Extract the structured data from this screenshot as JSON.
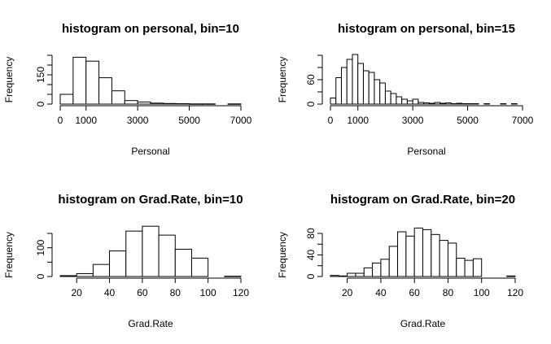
{
  "chart_data": [
    {
      "type": "bar",
      "title": "histogram on personal, bin=10",
      "xlabel": "Personal",
      "ylabel": "Frequency",
      "bins": [
        {
          "x0": 0,
          "x1": 500,
          "count": 50
        },
        {
          "x0": 500,
          "x1": 1000,
          "count": 240
        },
        {
          "x0": 1000,
          "x1": 1500,
          "count": 220
        },
        {
          "x0": 1500,
          "x1": 2000,
          "count": 135
        },
        {
          "x0": 2000,
          "x1": 2500,
          "count": 68
        },
        {
          "x0": 2500,
          "x1": 3000,
          "count": 18
        },
        {
          "x0": 3000,
          "x1": 3500,
          "count": 11
        },
        {
          "x0": 3500,
          "x1": 4000,
          "count": 5
        },
        {
          "x0": 4000,
          "x1": 4500,
          "count": 3
        },
        {
          "x0": 4500,
          "x1": 5000,
          "count": 2
        },
        {
          "x0": 5000,
          "x1": 5500,
          "count": 1
        },
        {
          "x0": 5500,
          "x1": 6000,
          "count": 1
        },
        {
          "x0": 6000,
          "x1": 6500,
          "count": 0
        },
        {
          "x0": 6500,
          "x1": 7000,
          "count": 1
        }
      ],
      "xlim": [
        0,
        7000
      ],
      "xticks": [
        0,
        1000,
        3000,
        5000,
        7000
      ],
      "xtick_labels": [
        "0",
        "1000",
        "3000",
        "5000",
        "7000"
      ],
      "ylim": [
        0,
        250
      ],
      "yticks": [
        0,
        50,
        100,
        150,
        200,
        250
      ],
      "ytick_labels": [
        "0",
        "",
        "",
        "150",
        "",
        ""
      ],
      "grid": false
    },
    {
      "type": "bar",
      "title": "histogram on personal, bin=15",
      "xlabel": "Personal",
      "ylabel": "Frequency",
      "bins": [
        {
          "x0": 0,
          "x1": 200,
          "count": 15
        },
        {
          "x0": 200,
          "x1": 400,
          "count": 65
        },
        {
          "x0": 400,
          "x1": 600,
          "count": 90
        },
        {
          "x0": 600,
          "x1": 800,
          "count": 110
        },
        {
          "x0": 800,
          "x1": 1000,
          "count": 122
        },
        {
          "x0": 1000,
          "x1": 1200,
          "count": 100
        },
        {
          "x0": 1200,
          "x1": 1400,
          "count": 82
        },
        {
          "x0": 1400,
          "x1": 1600,
          "count": 78
        },
        {
          "x0": 1600,
          "x1": 1800,
          "count": 60
        },
        {
          "x0": 1800,
          "x1": 2000,
          "count": 52
        },
        {
          "x0": 2000,
          "x1": 2200,
          "count": 32
        },
        {
          "x0": 2200,
          "x1": 2400,
          "count": 26
        },
        {
          "x0": 2400,
          "x1": 2600,
          "count": 18
        },
        {
          "x0": 2600,
          "x1": 2800,
          "count": 12
        },
        {
          "x0": 2800,
          "x1": 3000,
          "count": 8
        },
        {
          "x0": 3000,
          "x1": 3200,
          "count": 12
        },
        {
          "x0": 3200,
          "x1": 3400,
          "count": 4
        },
        {
          "x0": 3400,
          "x1": 3600,
          "count": 3
        },
        {
          "x0": 3600,
          "x1": 3800,
          "count": 2
        },
        {
          "x0": 3800,
          "x1": 4000,
          "count": 4
        },
        {
          "x0": 4000,
          "x1": 4200,
          "count": 2
        },
        {
          "x0": 4200,
          "x1": 4400,
          "count": 3
        },
        {
          "x0": 4400,
          "x1": 4600,
          "count": 1
        },
        {
          "x0": 4600,
          "x1": 4800,
          "count": 2
        },
        {
          "x0": 4800,
          "x1": 5000,
          "count": 1
        },
        {
          "x0": 5000,
          "x1": 5200,
          "count": 1
        },
        {
          "x0": 5200,
          "x1": 5400,
          "count": 1
        },
        {
          "x0": 5400,
          "x1": 5600,
          "count": 0
        },
        {
          "x0": 5600,
          "x1": 5800,
          "count": 1
        },
        {
          "x0": 5800,
          "x1": 6000,
          "count": 0
        },
        {
          "x0": 6000,
          "x1": 6200,
          "count": 0
        },
        {
          "x0": 6200,
          "x1": 6400,
          "count": 1
        },
        {
          "x0": 6400,
          "x1": 6600,
          "count": 0
        },
        {
          "x0": 6600,
          "x1": 6800,
          "count": 1
        }
      ],
      "xlim": [
        0,
        7000
      ],
      "xticks": [
        0,
        1000,
        3000,
        5000,
        7000
      ],
      "xtick_labels": [
        "0",
        "1000",
        "3000",
        "5000",
        "7000"
      ],
      "ylim": [
        0,
        120
      ],
      "yticks": [
        0,
        30,
        60,
        90,
        120
      ],
      "ytick_labels": [
        "0",
        "",
        "60",
        "",
        ""
      ],
      "grid": false
    },
    {
      "type": "bar",
      "title": "histogram on Grad.Rate, bin=10",
      "xlabel": "Grad.Rate",
      "ylabel": "Frequency",
      "bins": [
        {
          "x0": 10,
          "x1": 20,
          "count": 3
        },
        {
          "x0": 20,
          "x1": 30,
          "count": 10
        },
        {
          "x0": 30,
          "x1": 40,
          "count": 42
        },
        {
          "x0": 40,
          "x1": 50,
          "count": 89
        },
        {
          "x0": 50,
          "x1": 60,
          "count": 158
        },
        {
          "x0": 60,
          "x1": 70,
          "count": 175
        },
        {
          "x0": 70,
          "x1": 80,
          "count": 144
        },
        {
          "x0": 80,
          "x1": 90,
          "count": 95
        },
        {
          "x0": 90,
          "x1": 100,
          "count": 64
        },
        {
          "x0": 100,
          "x1": 110,
          "count": 0
        },
        {
          "x0": 110,
          "x1": 120,
          "count": 1
        }
      ],
      "xlim": [
        10,
        120
      ],
      "xticks": [
        20,
        40,
        60,
        80,
        100,
        120
      ],
      "xtick_labels": [
        "20",
        "40",
        "60",
        "80",
        "100",
        "120"
      ],
      "ylim": [
        0,
        150
      ],
      "yticks": [
        0,
        50,
        100,
        150
      ],
      "ytick_labels": [
        "0",
        "",
        "100",
        ""
      ],
      "grid": false
    },
    {
      "type": "bar",
      "title": "histogram on Grad.Rate, bin=20",
      "xlabel": "Grad.Rate",
      "ylabel": "Frequency",
      "bins": [
        {
          "x0": 10,
          "x1": 15,
          "count": 2
        },
        {
          "x0": 15,
          "x1": 20,
          "count": 1
        },
        {
          "x0": 20,
          "x1": 25,
          "count": 6
        },
        {
          "x0": 25,
          "x1": 30,
          "count": 6
        },
        {
          "x0": 30,
          "x1": 35,
          "count": 16
        },
        {
          "x0": 35,
          "x1": 40,
          "count": 25
        },
        {
          "x0": 40,
          "x1": 45,
          "count": 32
        },
        {
          "x0": 45,
          "x1": 50,
          "count": 56
        },
        {
          "x0": 50,
          "x1": 55,
          "count": 83
        },
        {
          "x0": 55,
          "x1": 60,
          "count": 75
        },
        {
          "x0": 60,
          "x1": 65,
          "count": 90
        },
        {
          "x0": 65,
          "x1": 70,
          "count": 87
        },
        {
          "x0": 70,
          "x1": 75,
          "count": 78
        },
        {
          "x0": 75,
          "x1": 80,
          "count": 67
        },
        {
          "x0": 80,
          "x1": 85,
          "count": 62
        },
        {
          "x0": 85,
          "x1": 90,
          "count": 34
        },
        {
          "x0": 90,
          "x1": 95,
          "count": 30
        },
        {
          "x0": 95,
          "x1": 100,
          "count": 33
        },
        {
          "x0": 100,
          "x1": 105,
          "count": 0
        },
        {
          "x0": 105,
          "x1": 110,
          "count": 0
        },
        {
          "x0": 110,
          "x1": 115,
          "count": 0
        },
        {
          "x0": 115,
          "x1": 120,
          "count": 1
        }
      ],
      "xlim": [
        10,
        120
      ],
      "xticks": [
        20,
        40,
        60,
        80,
        100,
        120
      ],
      "xtick_labels": [
        "20",
        "40",
        "60",
        "80",
        "100",
        "120"
      ],
      "ylim": [
        0,
        80
      ],
      "yticks": [
        0,
        20,
        40,
        60,
        80
      ],
      "ytick_labels": [
        "0",
        "",
        "40",
        "",
        "80"
      ],
      "grid": false
    }
  ]
}
